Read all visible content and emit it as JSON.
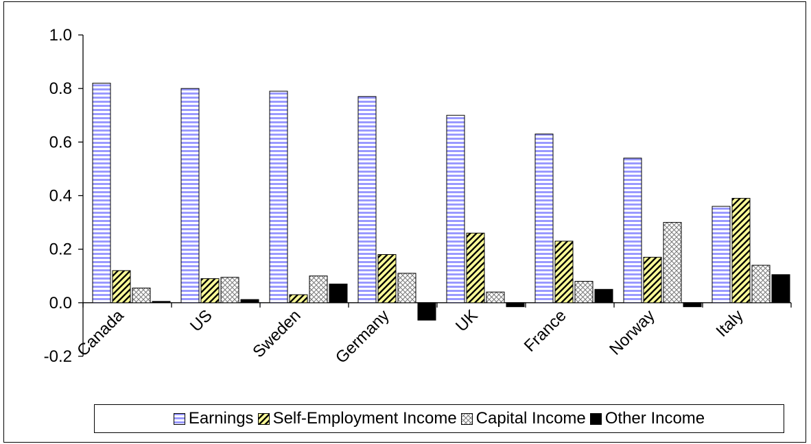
{
  "chart_data": {
    "type": "bar",
    "categories": [
      "Canada",
      "US",
      "Sweden",
      "Germany",
      "UK",
      "France",
      "Norway",
      "Italy"
    ],
    "series": [
      {
        "name": "Earnings",
        "values": [
          0.82,
          0.8,
          0.79,
          0.77,
          0.7,
          0.63,
          0.54,
          0.36
        ],
        "color": "#9999ff",
        "pattern": "horizontal-stripes"
      },
      {
        "name": "Self-Employment Income",
        "values": [
          0.12,
          0.09,
          0.03,
          0.18,
          0.26,
          0.23,
          0.17,
          0.39
        ],
        "color": "#ffff99",
        "pattern": "diagonal-stripes"
      },
      {
        "name": "Capital Income",
        "values": [
          0.055,
          0.095,
          0.1,
          0.11,
          0.04,
          0.08,
          0.3,
          0.14
        ],
        "color": "#ffffff",
        "pattern": "crosshatch"
      },
      {
        "name": "Other Income",
        "values": [
          0.005,
          0.012,
          0.07,
          -0.065,
          -0.015,
          0.05,
          -0.015,
          0.105
        ],
        "color": "#000000",
        "pattern": "solid"
      }
    ],
    "yticks": [
      "-0.2",
      "0.0",
      "0.2",
      "0.4",
      "0.6",
      "0.8",
      "1.0"
    ],
    "ylim": [
      -0.2,
      1.0
    ],
    "xlabel": "",
    "ylabel": "",
    "title": "",
    "grid": false,
    "legend_position": "bottom"
  }
}
